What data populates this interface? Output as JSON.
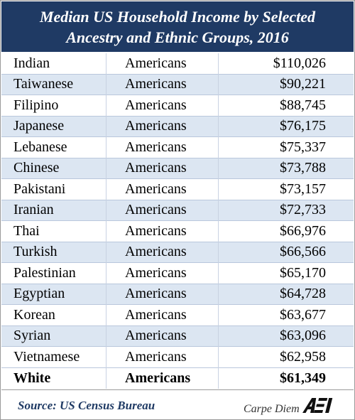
{
  "chart_data": {
    "type": "table",
    "title_lines": [
      "Median US Household Income by Selected",
      "Ancestry and Ethnic Groups, 2016"
    ],
    "rows": [
      {
        "group": "Indian",
        "label": "Americans",
        "value": "$110,026"
      },
      {
        "group": "Taiwanese",
        "label": "Americans",
        "value": "$90,221"
      },
      {
        "group": "Filipino",
        "label": "Americans",
        "value": "$88,745"
      },
      {
        "group": "Japanese",
        "label": "Americans",
        "value": "$76,175"
      },
      {
        "group": "Lebanese",
        "label": "Americans",
        "value": "$75,337"
      },
      {
        "group": "Chinese",
        "label": "Americans",
        "value": "$73,788"
      },
      {
        "group": "Pakistani",
        "label": "Americans",
        "value": "$73,157"
      },
      {
        "group": "Iranian",
        "label": "Americans",
        "value": "$72,733"
      },
      {
        "group": "Thai",
        "label": "Americans",
        "value": "$66,976"
      },
      {
        "group": "Turkish",
        "label": "Americans",
        "value": "$66,566"
      },
      {
        "group": "Palestinian",
        "label": "Americans",
        "value": "$65,170"
      },
      {
        "group": "Egyptian",
        "label": "Americans",
        "value": "$64,728"
      },
      {
        "group": "Korean",
        "label": "Americans",
        "value": "$63,677"
      },
      {
        "group": "Syrian",
        "label": "Americans",
        "value": "$63,096"
      },
      {
        "group": "Vietnamese",
        "label": "Americans",
        "value": "$62,958"
      },
      {
        "group": "White",
        "label": "Americans",
        "value": "$61,349",
        "bold": true
      }
    ]
  },
  "footer": {
    "source": "Source: US Census Bureau",
    "brand": "Carpe Diem",
    "logo_text": "AEI"
  },
  "colors": {
    "header_bg": "#1f3a64",
    "row_alt": "#dce6f2",
    "source_text": "#1f3a64"
  }
}
